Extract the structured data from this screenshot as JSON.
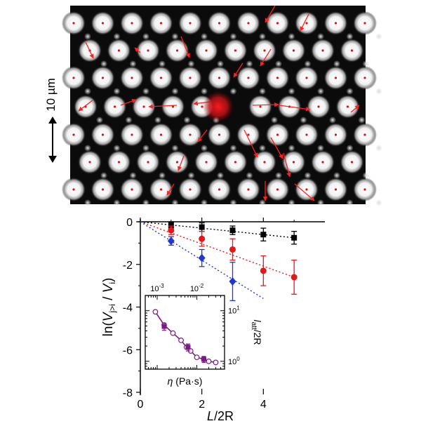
{
  "figure": {
    "scale_bar_label": "10 µm"
  },
  "chart_data": [
    {
      "type": "scatter",
      "title": "",
      "xlabel": "L/2R",
      "ylabel": "ln(Vj>i / Vi)",
      "xlim": [
        0,
        6
      ],
      "ylim": [
        -8,
        0
      ],
      "x_ticks": [
        "0",
        "2",
        "4"
      ],
      "y_ticks": [
        "0",
        "-2",
        "-4",
        "-6",
        "-8"
      ],
      "series": [
        {
          "color": "#000000",
          "marker": "square",
          "x": [
            1,
            2,
            3,
            4,
            5
          ],
          "values": [
            -0.15,
            -0.25,
            -0.4,
            -0.6,
            -0.75
          ],
          "errors": [
            0.15,
            0.2,
            0.2,
            0.3,
            0.3
          ]
        },
        {
          "color": "#e0191b",
          "marker": "circle",
          "x": [
            1,
            2,
            3,
            4,
            5
          ],
          "values": [
            -0.4,
            -0.8,
            -1.3,
            -2.3,
            -2.6
          ],
          "errors": [
            0.2,
            0.35,
            0.5,
            0.7,
            0.8
          ]
        },
        {
          "color": "#1f37d6",
          "marker": "diamond",
          "x": [
            1,
            2,
            3
          ],
          "values": [
            -0.9,
            -1.7,
            -2.8
          ],
          "errors": [
            0.2,
            0.4,
            0.9
          ]
        }
      ],
      "fit_lines": [
        {
          "color": "#000000",
          "x": [
            0,
            5
          ],
          "values": [
            0,
            -0.75
          ]
        },
        {
          "color": "#e0191b",
          "x": [
            0,
            5
          ],
          "values": [
            0,
            -2.6
          ]
        },
        {
          "color": "#1f37d6",
          "x": [
            0,
            4
          ],
          "values": [
            0,
            -3.6
          ]
        }
      ]
    },
    {
      "type": "line",
      "title": "",
      "xlabel": "η (Pa·s)",
      "ylabel": "latt/2R",
      "x_scale": "log",
      "y_scale": "log",
      "xlim": [
        0.0005,
        0.05
      ],
      "ylim": [
        0.7,
        20
      ],
      "x_ticks": [
        "10-3",
        "10-2"
      ],
      "y_ticks": [
        "100",
        "101"
      ],
      "series": [
        {
          "color": "#7b1a86",
          "marker": "open-circle",
          "x": [
            0.0009,
            0.0015,
            0.0025,
            0.004,
            0.0055,
            0.007,
            0.01,
            0.015,
            0.02,
            0.03
          ],
          "values": [
            9.5,
            5.2,
            3.6,
            2.6,
            1.9,
            1.6,
            1.2,
            1.1,
            1.0,
            0.95
          ]
        },
        {
          "color": "#7b1a86",
          "marker": "filled-square",
          "x": [
            0.0015,
            0.006,
            0.015
          ],
          "values": [
            4.9,
            1.9,
            1.1
          ],
          "errors": [
            0.8,
            0.3,
            0.15
          ]
        }
      ]
    }
  ]
}
